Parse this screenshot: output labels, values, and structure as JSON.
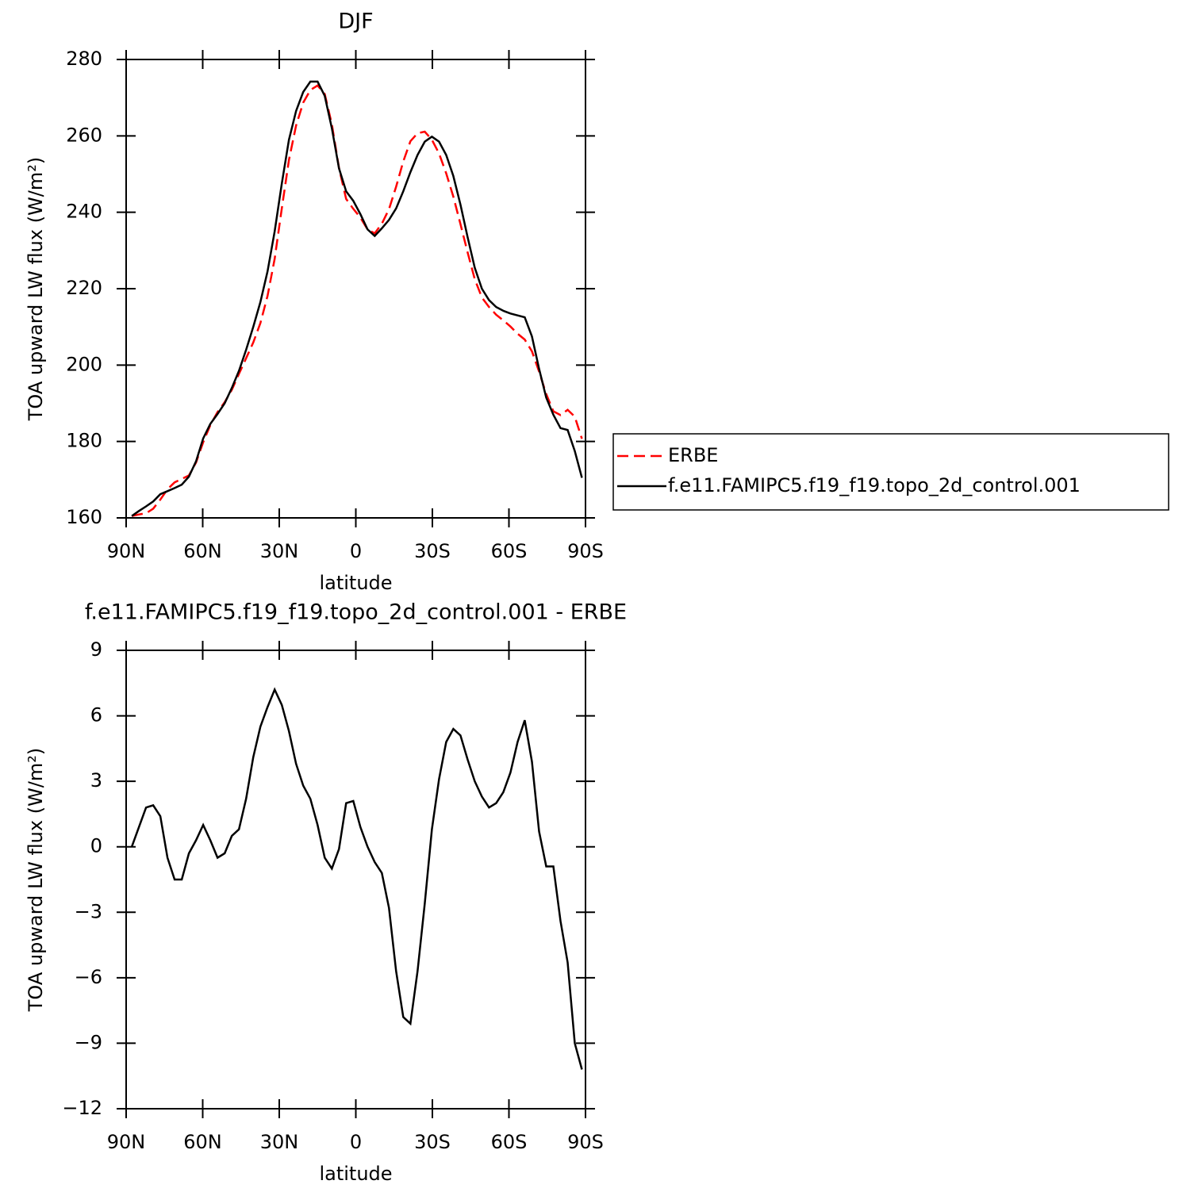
{
  "chart_data": [
    {
      "type": "line",
      "title": "DJF",
      "xlabel": "latitude",
      "ylabel": "TOA upward LW flux (W/m²)",
      "x": [
        87.8,
        85,
        82.2,
        79.4,
        76.6,
        73.8,
        71,
        68.2,
        65.4,
        62.6,
        59.8,
        57,
        54.2,
        51.4,
        48.6,
        45.8,
        43,
        40.2,
        37.4,
        34.6,
        31.8,
        29,
        26.2,
        23.4,
        20.6,
        17.8,
        15,
        12.2,
        9.4,
        6.6,
        3.8,
        1,
        -1.8,
        -4.6,
        -7.4,
        -10.2,
        -13,
        -15.8,
        -18.6,
        -21.4,
        -24.2,
        -27,
        -29.8,
        -32.6,
        -35.4,
        -38.2,
        -41,
        -43.8,
        -46.6,
        -49.4,
        -52.2,
        -55,
        -57.8,
        -60.6,
        -63.4,
        -66.2,
        -69,
        -71.8,
        -74.6,
        -77.4,
        -80.2,
        -83,
        -85.8,
        -88.6
      ],
      "series": [
        {
          "name": "ERBE",
          "color": "#ff0000",
          "linestyle": "dashed",
          "values": [
            160.5,
            160.9,
            161.2,
            162.4,
            164.8,
            167.5,
            169.3,
            170.2,
            171.1,
            174.5,
            179.8,
            184.3,
            187.7,
            190.3,
            193.5,
            197.7,
            201.8,
            205.9,
            211.0,
            218.1,
            227.8,
            241.0,
            253.7,
            262.7,
            268.7,
            272.0,
            273.2,
            271.0,
            263.0,
            251.6,
            243.5,
            240.9,
            238.6,
            235.5,
            234.5,
            237.0,
            240.8,
            246.7,
            253.3,
            258.6,
            260.7,
            261.1,
            259.0,
            255.4,
            250.2,
            244.1,
            236.9,
            229.5,
            222.5,
            217.7,
            215.2,
            213.2,
            211.7,
            210.1,
            208.2,
            206.7,
            203.6,
            198.3,
            192.4,
            187.9,
            186.9,
            188.3,
            186.5,
            180.7
          ]
        },
        {
          "name": "f.e11.FAMIPC5.f19_f19.topo_2d_control.001",
          "color": "#000000",
          "linestyle": "solid",
          "values": [
            160.5,
            161.8,
            163.0,
            164.3,
            166.2,
            167.0,
            167.8,
            168.7,
            170.8,
            174.8,
            180.8,
            184.6,
            187.2,
            190.0,
            194.0,
            198.5,
            204.0,
            210.0,
            216.5,
            224.5,
            235.0,
            247.5,
            259.0,
            266.5,
            271.5,
            274.2,
            274.2,
            270.5,
            262.0,
            251.5,
            245.5,
            243.0,
            239.5,
            235.5,
            233.8,
            235.8,
            238.0,
            241.0,
            245.5,
            250.5,
            255.0,
            258.5,
            259.8,
            258.5,
            255.0,
            249.5,
            242.0,
            233.5,
            225.5,
            220.0,
            217.0,
            215.2,
            214.2,
            213.5,
            213.0,
            212.5,
            207.5,
            199.0,
            191.5,
            187.0,
            183.5,
            183.0,
            177.5,
            170.5
          ]
        }
      ],
      "xlim": [
        90,
        -90
      ],
      "xticks": [
        {
          "value": 90,
          "label": "90N"
        },
        {
          "value": 60,
          "label": "60N"
        },
        {
          "value": 30,
          "label": "30N"
        },
        0,
        {
          "value": -30,
          "label": "30S"
        },
        {
          "value": -60,
          "label": "60S"
        },
        {
          "value": -90,
          "label": "90S"
        }
      ],
      "ylim": [
        160,
        280
      ],
      "yticks": [
        160,
        180,
        200,
        220,
        240,
        260,
        280
      ],
      "legend": "right"
    },
    {
      "type": "line",
      "title": "f.e11.FAMIPC5.f19_f19.topo_2d_control.001 - ERBE",
      "xlabel": "latitude",
      "ylabel": "TOA upward LW flux (W/m²)",
      "x": [
        87.8,
        85,
        82.2,
        79.4,
        76.6,
        73.8,
        71,
        68.2,
        65.4,
        62.6,
        59.8,
        57,
        54.2,
        51.4,
        48.6,
        45.8,
        43,
        40.2,
        37.4,
        34.6,
        31.8,
        29,
        26.2,
        23.4,
        20.6,
        17.8,
        15,
        12.2,
        9.4,
        6.6,
        3.8,
        1,
        -1.8,
        -4.6,
        -7.4,
        -10.2,
        -13,
        -15.8,
        -18.6,
        -21.4,
        -24.2,
        -27,
        -29.8,
        -32.6,
        -35.4,
        -38.2,
        -41,
        -43.8,
        -46.6,
        -49.4,
        -52.2,
        -55,
        -57.8,
        -60.6,
        -63.4,
        -66.2,
        -69,
        -71.8,
        -74.6,
        -77.4,
        -80.2,
        -83,
        -85.8,
        -88.6
      ],
      "color": "#000000",
      "linestyle": "solid",
      "values": [
        0.0,
        0.9,
        1.8,
        1.9,
        1.4,
        -0.5,
        -1.5,
        -1.5,
        -0.3,
        0.3,
        1.0,
        0.3,
        -0.5,
        -0.3,
        0.5,
        0.8,
        2.2,
        4.1,
        5.5,
        6.4,
        7.2,
        6.5,
        5.3,
        3.8,
        2.8,
        2.2,
        1.0,
        -0.5,
        -1.0,
        -0.1,
        2.0,
        2.1,
        0.9,
        0.0,
        -0.7,
        -1.2,
        -2.8,
        -5.7,
        -7.8,
        -8.1,
        -5.7,
        -2.6,
        0.8,
        3.1,
        4.8,
        5.4,
        5.1,
        4.0,
        3.0,
        2.3,
        1.8,
        2.0,
        2.5,
        3.4,
        4.8,
        5.8,
        3.9,
        0.7,
        -0.9,
        -0.9,
        -3.4,
        -5.3,
        -9.0,
        -10.2
      ],
      "xlim": [
        90,
        -90
      ],
      "xticks": [
        {
          "value": 90,
          "label": "90N"
        },
        {
          "value": 60,
          "label": "60N"
        },
        {
          "value": 30,
          "label": "30N"
        },
        0,
        {
          "value": -30,
          "label": "30S"
        },
        {
          "value": -60,
          "label": "60S"
        },
        {
          "value": -90,
          "label": "90S"
        }
      ],
      "ylim": [
        -12,
        9
      ],
      "yticks": [
        {
          "value": -12,
          "label": "−12"
        },
        {
          "value": -9,
          "label": "−9"
        },
        {
          "value": -6,
          "label": "−6"
        },
        {
          "value": -3,
          "label": "−3"
        },
        0,
        3,
        6,
        9
      ]
    }
  ]
}
